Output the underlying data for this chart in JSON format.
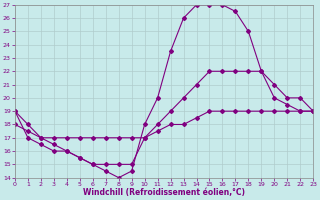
{
  "xlabel": "Windchill (Refroidissement éolien,°C)",
  "bg_color": "#c8eaea",
  "line_color": "#800080",
  "grid_color": "#b0cccc",
  "xlim": [
    0,
    23
  ],
  "ylim": [
    14,
    27
  ],
  "xticks": [
    0,
    1,
    2,
    3,
    4,
    5,
    6,
    7,
    8,
    9,
    10,
    11,
    12,
    13,
    14,
    15,
    16,
    17,
    18,
    19,
    20,
    21,
    22,
    23
  ],
  "yticks": [
    14,
    15,
    16,
    17,
    18,
    19,
    20,
    21,
    22,
    23,
    24,
    25,
    26,
    27
  ],
  "series": [
    {
      "x": [
        0,
        1,
        2,
        3,
        4,
        5,
        6,
        7,
        8,
        9,
        10,
        11,
        12,
        13,
        14,
        15,
        16,
        17,
        18,
        19,
        20,
        21,
        22,
        23
      ],
      "y": [
        19,
        18,
        17,
        16.5,
        16,
        15.5,
        15,
        14.5,
        14,
        14.5,
        18,
        20,
        23.5,
        26,
        27,
        27,
        27,
        26.5,
        25,
        22,
        20,
        19.5,
        19,
        19
      ]
    },
    {
      "x": [
        0,
        1,
        2,
        3,
        4,
        5,
        6,
        7,
        8,
        9,
        10,
        11,
        12,
        13,
        14,
        15,
        16,
        17,
        18,
        19,
        20,
        21,
        22,
        23
      ],
      "y": [
        18,
        17.5,
        17,
        17,
        17,
        17,
        17,
        17,
        17,
        17,
        17,
        17.5,
        18,
        18,
        18.5,
        19,
        19,
        19,
        19,
        19,
        19,
        19,
        19,
        19
      ]
    },
    {
      "x": [
        0,
        1,
        2,
        3,
        4,
        5,
        6,
        7,
        8,
        9,
        10,
        11,
        12,
        13,
        14,
        15,
        16,
        17,
        18,
        19,
        20,
        21,
        22,
        23
      ],
      "y": [
        19,
        17,
        16.5,
        16,
        16,
        15.5,
        15,
        15,
        15,
        15,
        17,
        18,
        19,
        20,
        21,
        22,
        22,
        22,
        22,
        22,
        21,
        20,
        20,
        19
      ]
    }
  ]
}
